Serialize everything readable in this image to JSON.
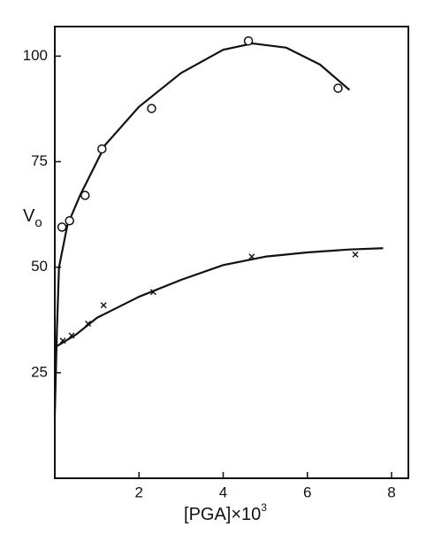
{
  "chart_data": {
    "type": "scatter",
    "xlabel": "[PGA]×10",
    "xlabel_sup": "3",
    "ylabel": "V",
    "ylabel_sub": "o",
    "xlim": [
      0,
      8.4
    ],
    "ylim": [
      0,
      107
    ],
    "xticks": [
      2,
      4,
      6,
      8
    ],
    "yticks": [
      25,
      50,
      75,
      100
    ],
    "color": "#111111",
    "series": [
      {
        "marker": "circle",
        "x": [
          0.17,
          0.35,
          0.72,
          1.12,
          2.3,
          4.6,
          6.73
        ],
        "y": [
          59.5,
          61,
          67,
          78,
          87.6,
          103.6,
          92.4
        ]
      },
      {
        "marker": "cross",
        "x": [
          0.19,
          0.4,
          0.79,
          1.16,
          2.34,
          4.68,
          7.14
        ],
        "y": [
          32.6,
          33.8,
          36.6,
          41,
          44.1,
          52.5,
          53
        ]
      }
    ],
    "curves": [
      {
        "x": [
          0,
          0.05,
          0.1,
          0.3,
          0.6,
          1.2,
          2,
          3,
          4,
          4.7,
          5.5,
          6.3,
          7.0
        ],
        "y": [
          15,
          35,
          50,
          60,
          67,
          79,
          88,
          96,
          101.5,
          103,
          102,
          98,
          92
        ]
      },
      {
        "x": [
          0,
          0.5,
          1,
          2,
          3,
          4,
          5,
          6,
          7,
          7.8
        ],
        "y": [
          31,
          34,
          38,
          43,
          47,
          50.5,
          52.5,
          53.5,
          54.2,
          54.5
        ]
      }
    ]
  }
}
